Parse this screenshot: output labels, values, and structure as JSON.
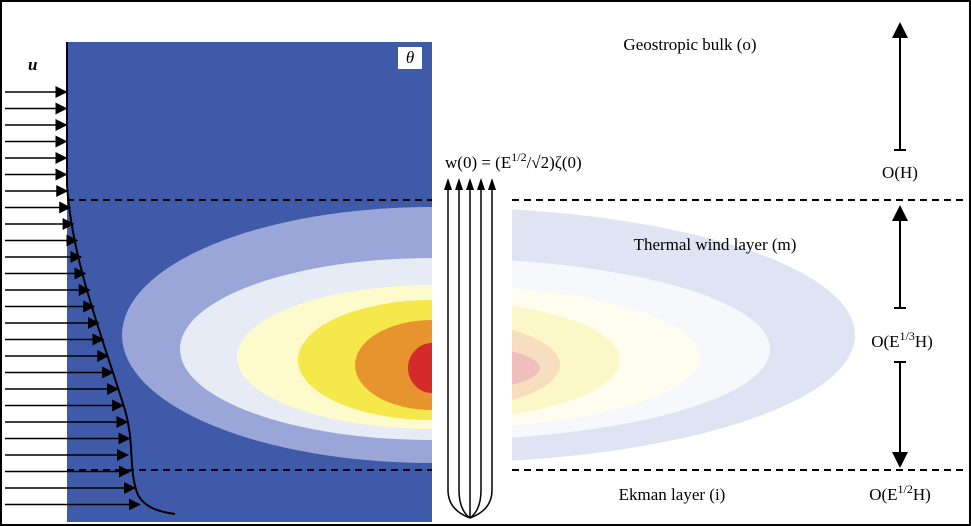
{
  "u_label": "u",
  "theta_label": "θ",
  "layers": {
    "bulk": "Geostropic bulk (o)",
    "thermal": "Thermal wind layer (m)",
    "ekman": "Ekman layer (i)"
  },
  "w_formula": {
    "lead": "w(0) = (E",
    "sup": "1/2",
    "mid": "/√2)ζ(0)"
  },
  "scales": {
    "bulk": "O(H)",
    "thermal": {
      "lead": "O(E",
      "sup": "1/3",
      "tail": "H)"
    },
    "ekman": {
      "lead": "O(E",
      "sup": "1/2",
      "tail": "H)"
    }
  }
}
